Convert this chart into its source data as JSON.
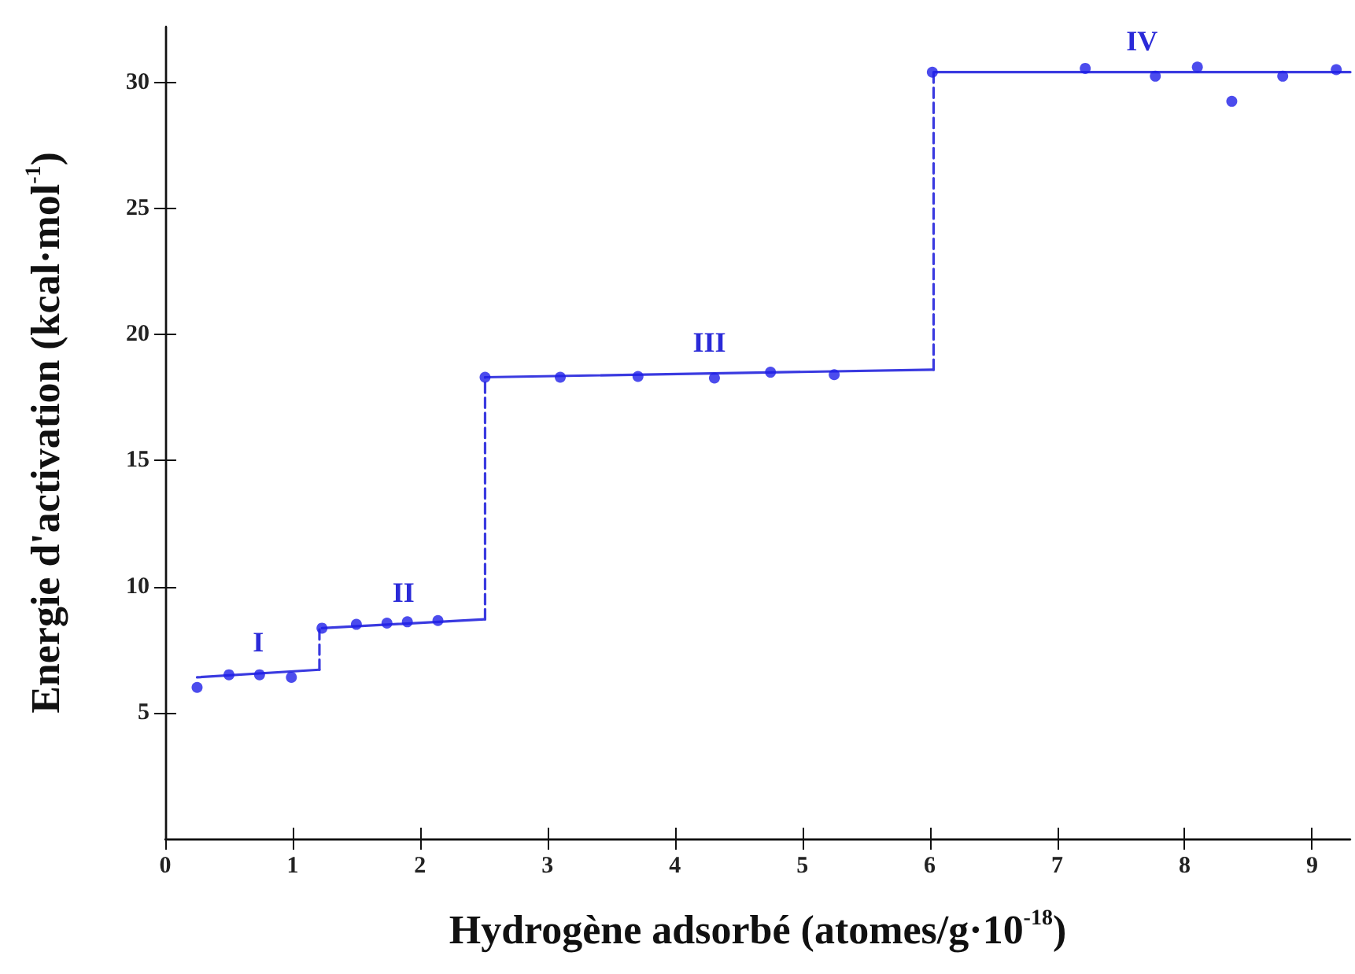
{
  "chart_data": {
    "type": "scatter",
    "xlabel": "Hydrogène adsorbé (atomes/g·10$^{-18}$)",
    "ylabel": "Energie d'activation (kcal·mol$^{-1}$)",
    "xlim": [
      0,
      9.3
    ],
    "xticks": [
      0,
      1,
      2,
      3,
      4,
      5,
      6,
      7,
      8,
      9
    ],
    "ylim": [
      0,
      32.2
    ],
    "yticks": [
      5,
      10,
      15,
      20,
      25,
      30
    ],
    "grid": false,
    "marker": "circle",
    "series": [
      {
        "color": "#1f1fe8",
        "x": [
          0.25,
          0.5,
          0.74,
          0.99,
          1.23,
          1.5,
          1.74,
          1.9,
          2.14,
          2.51,
          3.1,
          3.71,
          4.31,
          4.75,
          5.25,
          6.02,
          7.22,
          7.77,
          8.1,
          8.37,
          8.77,
          9.19
        ],
        "values": [
          6.0,
          6.5,
          6.5,
          6.4,
          8.35,
          8.5,
          8.55,
          8.6,
          8.65,
          18.3,
          18.3,
          18.33,
          18.27,
          18.5,
          18.4,
          30.4,
          30.55,
          30.24,
          30.6,
          29.24,
          30.24,
          30.5
        ]
      },
      {
        "type": "line",
        "color": "#3a3ae0",
        "marker": "none",
        "line_style": "solid",
        "x": [
          0.25,
          1.21
        ],
        "values": [
          6.4,
          6.7
        ]
      },
      {
        "type": "line",
        "color": "#3a3ae0",
        "marker": "none",
        "line_style": "dashed",
        "x": [
          1.21,
          1.21
        ],
        "values": [
          6.7,
          8.35
        ]
      },
      {
        "type": "line",
        "color": "#3a3ae0",
        "marker": "none",
        "line_style": "solid",
        "x": [
          1.23,
          2.51
        ],
        "values": [
          8.35,
          8.7
        ]
      },
      {
        "type": "line",
        "color": "#3a3ae0",
        "marker": "none",
        "line_style": "dashed",
        "x": [
          2.51,
          2.51
        ],
        "values": [
          8.7,
          18.3
        ]
      },
      {
        "type": "line",
        "color": "#3a3ae0",
        "marker": "none",
        "line_style": "solid",
        "x": [
          2.51,
          6.03
        ],
        "values": [
          18.3,
          18.6
        ]
      },
      {
        "type": "line",
        "color": "#3a3ae0",
        "marker": "none",
        "line_style": "dashed",
        "x": [
          6.03,
          6.03
        ],
        "values": [
          18.6,
          30.4
        ]
      },
      {
        "type": "line",
        "color": "#3a3ae0",
        "marker": "none",
        "line_style": "solid",
        "x": [
          6.03,
          9.3
        ],
        "values": [
          30.4,
          30.4
        ]
      }
    ],
    "annotations": [
      "I",
      "II",
      "III",
      "IV"
    ]
  }
}
